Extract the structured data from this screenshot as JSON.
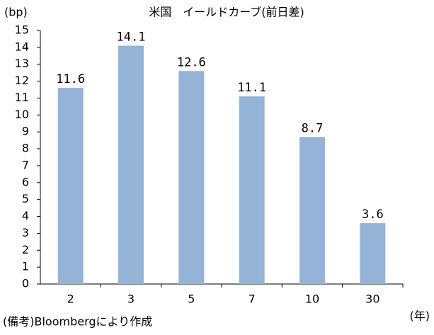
{
  "chart_data": {
    "type": "bar",
    "title": "米国　イールドカーブ(前日差)",
    "y_unit": "(bp)",
    "x_unit": "(年)",
    "source": "(備考)Bloombergにより作成",
    "categories": [
      "2",
      "3",
      "5",
      "7",
      "10",
      "30"
    ],
    "values": [
      11.6,
      14.1,
      12.6,
      11.1,
      8.7,
      3.6
    ],
    "color": "#95b3d7",
    "ylim": [
      0,
      15
    ],
    "yticks": [
      0,
      1,
      2,
      3,
      4,
      5,
      6,
      7,
      8,
      9,
      10,
      11,
      12,
      13,
      14,
      15
    ],
    "grid": false
  }
}
